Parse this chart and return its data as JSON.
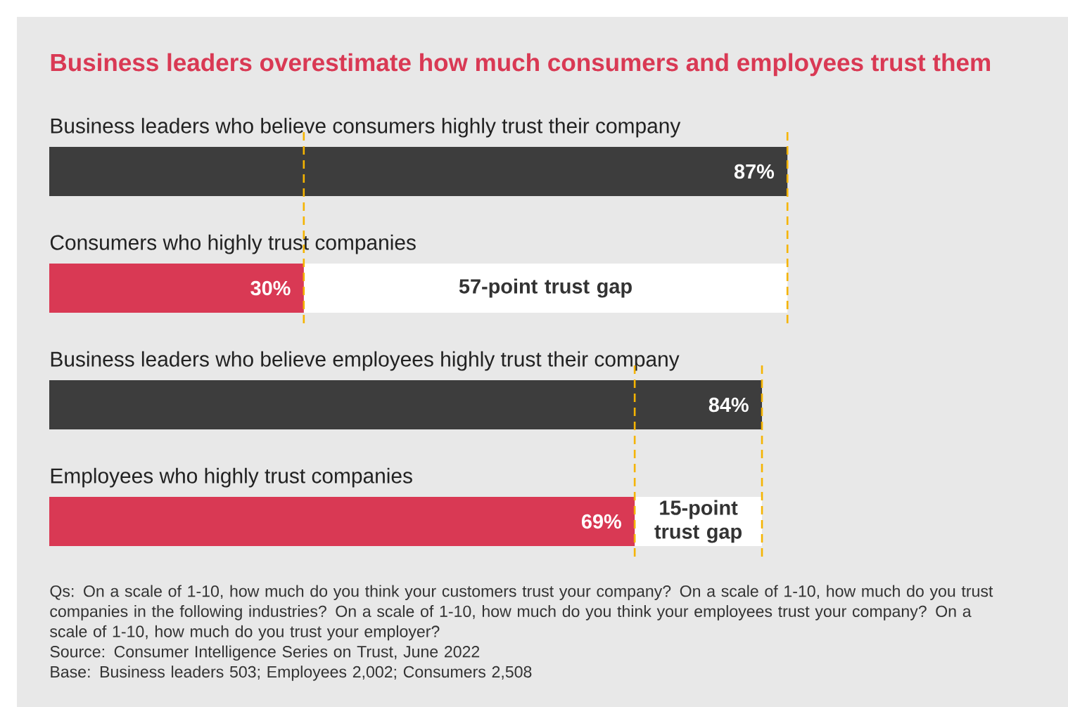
{
  "chart_data": {
    "type": "bar",
    "orientation": "horizontal",
    "tick_labels": false,
    "title": "Business leaders overestimate how much consumers and employees trust them",
    "categories": [
      "Business leaders who believe consumers highly trust their company",
      "Consumers who highly trust companies",
      "Business leaders who believe employees highly trust their company",
      "Employees who highly trust companies"
    ],
    "values": [
      87,
      30,
      84,
      69
    ],
    "colors": [
      "#3d3d3d",
      "#d93954",
      "#3d3d3d",
      "#d93954"
    ],
    "value_labels": [
      "87%",
      "30%",
      "84%",
      "69%"
    ],
    "bands": [
      {
        "axis": "x",
        "from": 30,
        "to": 87,
        "label": "57-point trust gap",
        "color": "#ffffff"
      },
      {
        "axis": "x",
        "from": 69,
        "to": 84,
        "label": "15-point trust gap",
        "color": "#ffffff"
      }
    ],
    "ref_lines": [
      {
        "axis": "x",
        "value": 30,
        "color": "#f5b400",
        "line_style": "dashed"
      },
      {
        "axis": "x",
        "value": 87,
        "color": "#f5b400",
        "line_style": "dashed"
      },
      {
        "axis": "x",
        "value": 69,
        "color": "#f5b400",
        "line_style": "dashed"
      },
      {
        "axis": "x",
        "value": 84,
        "color": "#f5b400",
        "line_style": "dashed"
      }
    ],
    "annotations": [
      "Qs: On a scale of 1-10, how much do you think your customers trust your company? On a scale of 1-10, how much do you trust companies in the following industries? On a scale of 1-10, how much do you think your employees trust your company? On a scale of 1-10, how much do you trust your employer?",
      "Source: Consumer Intelligence Series on Trust, June 2022",
      "Base: Business leaders 503; Employees 2,002; Consumers 2,508"
    ]
  }
}
